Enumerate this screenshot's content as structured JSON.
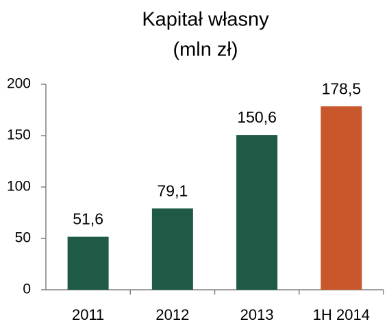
{
  "chart_data": {
    "type": "bar",
    "title": "Kapitał własny",
    "subtitle": "(mln zł)",
    "categories": [
      "2011",
      "2012",
      "2013",
      "1H 2014"
    ],
    "values": [
      51.6,
      79.1,
      150.6,
      178.5
    ],
    "value_labels": [
      "51,6",
      "79,1",
      "150,6",
      "178,5"
    ],
    "colors": [
      "#1e5a45",
      "#1e5a45",
      "#1e5a45",
      "#c8572b"
    ],
    "ylim": [
      0,
      200
    ],
    "yticks": [
      0,
      50,
      100,
      150,
      200
    ],
    "grid": false
  }
}
